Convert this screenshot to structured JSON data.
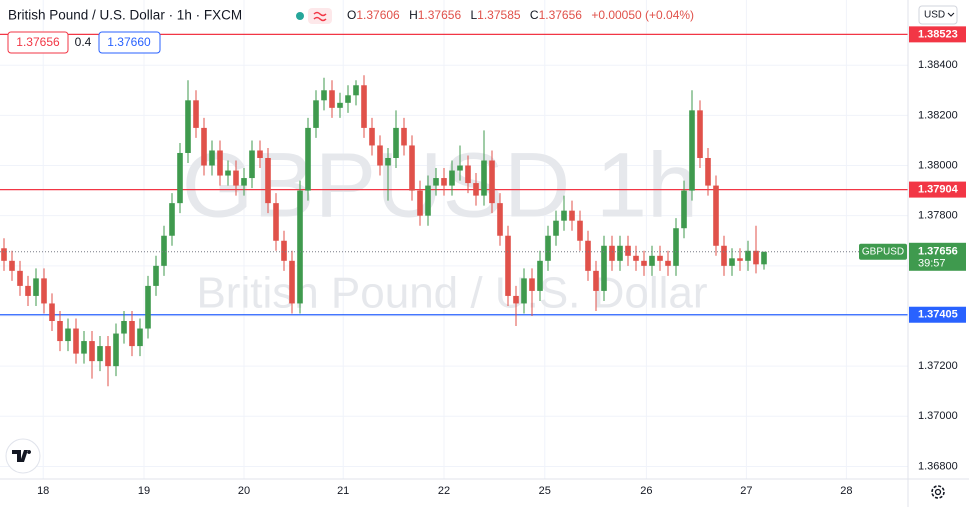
{
  "header": {
    "title": "British Pound / U.S. Dollar · 1h · FXCM",
    "ohlc_labels": [
      "O",
      "H",
      "L",
      "C"
    ],
    "change": "+0.00050 (+0.04%)",
    "spread": "0.4",
    "ask": "1.37660",
    "currency": "USD"
  },
  "chart_data": {
    "type": "candlestick",
    "watermark": "GBPUSD 1h",
    "watermark_subtitle": "British Pound / U.S. Dollar",
    "symbol": "GBPUSD",
    "countdown": "39:57",
    "up_color": "#3f9a4e",
    "down_color": "#e0514a",
    "grid": true,
    "xlim": [
      -0.5,
      113
    ],
    "xticks": [
      {
        "value": 4.9,
        "label": "18"
      },
      {
        "value": 17.5,
        "label": "19"
      },
      {
        "value": 30,
        "label": "20"
      },
      {
        "value": 42.4,
        "label": "21"
      },
      {
        "value": 55,
        "label": "22"
      },
      {
        "value": 67.6,
        "label": "25"
      },
      {
        "value": 80.3,
        "label": "26"
      },
      {
        "value": 92.8,
        "label": "27"
      },
      {
        "value": 105.3,
        "label": "28"
      }
    ],
    "ylim": [
      1.3675,
      1.3866
    ],
    "yticks": [
      {
        "value": 1.368,
        "label": "1.36800"
      },
      {
        "value": 1.37,
        "label": "1.37000"
      },
      {
        "value": 1.372,
        "label": "1.37200"
      },
      {
        "value": 1.374,
        "label": "1.37400"
      },
      {
        "value": 1.376,
        "label": "1.37600"
      },
      {
        "value": 1.378,
        "label": "1.37800"
      },
      {
        "value": 1.38,
        "label": "1.38000"
      },
      {
        "value": 1.382,
        "label": "1.38200"
      },
      {
        "value": 1.384,
        "label": "1.38400"
      }
    ],
    "series": {
      "open": [
        1.3767,
        1.3762,
        1.3758,
        1.3752,
        1.3748,
        1.3755,
        1.3745,
        1.3738,
        1.373,
        1.3735,
        1.3725,
        1.373,
        1.3722,
        1.3728,
        1.372,
        1.3733,
        1.3738,
        1.3728,
        1.3735,
        1.3752,
        1.376,
        1.3772,
        1.3785,
        1.3805,
        1.3826,
        1.3815,
        1.38,
        1.3806,
        1.3796,
        1.3798,
        1.3792,
        1.3795,
        1.3806,
        1.3803,
        1.3785,
        1.377,
        1.3762,
        1.3745,
        1.379,
        1.3815,
        1.3826,
        1.383,
        1.3823,
        1.3825,
        1.3828,
        1.3832,
        1.3815,
        1.3808,
        1.38,
        1.3803,
        1.3815,
        1.3808,
        1.379,
        1.378,
        1.3792,
        1.3795,
        1.3792,
        1.3798,
        1.38,
        1.3793,
        1.3788,
        1.3802,
        1.3785,
        1.3772,
        1.3748,
        1.3745,
        1.3755,
        1.375,
        1.3762,
        1.3772,
        1.3778,
        1.3782,
        1.3778,
        1.377,
        1.3758,
        1.375,
        1.3768,
        1.3762,
        1.3768,
        1.3764,
        1.3762,
        1.376,
        1.3764,
        1.3762,
        1.376,
        1.3775,
        1.379,
        1.3822,
        1.3803,
        1.3792,
        1.3768,
        1.376,
        1.3763,
        1.3762,
        1.3766,
        1.37606
      ],
      "high": [
        1.3771,
        1.3766,
        1.3762,
        1.3756,
        1.3759,
        1.3759,
        1.3749,
        1.3742,
        1.3739,
        1.3739,
        1.3734,
        1.3734,
        1.3732,
        1.3732,
        1.3737,
        1.3742,
        1.3742,
        1.3739,
        1.3756,
        1.3764,
        1.3776,
        1.3789,
        1.3809,
        1.3834,
        1.383,
        1.3819,
        1.381,
        1.381,
        1.3802,
        1.3802,
        1.3799,
        1.381,
        1.381,
        1.3807,
        1.3789,
        1.3774,
        1.3766,
        1.3794,
        1.3819,
        1.383,
        1.3835,
        1.3834,
        1.3829,
        1.3832,
        1.3834,
        1.3836,
        1.3819,
        1.3812,
        1.3807,
        1.3822,
        1.3819,
        1.3812,
        1.3794,
        1.3796,
        1.3799,
        1.3799,
        1.3802,
        1.3808,
        1.3804,
        1.3797,
        1.3814,
        1.3806,
        1.3789,
        1.3776,
        1.3752,
        1.3759,
        1.3759,
        1.3766,
        1.3776,
        1.3782,
        1.3788,
        1.3786,
        1.3782,
        1.3774,
        1.3762,
        1.3772,
        1.3772,
        1.3772,
        1.3772,
        1.3768,
        1.3766,
        1.3768,
        1.3768,
        1.3766,
        1.3779,
        1.3794,
        1.383,
        1.3826,
        1.3807,
        1.3796,
        1.3772,
        1.3767,
        1.3767,
        1.377,
        1.3776,
        1.37656
      ],
      "low": [
        1.3758,
        1.3754,
        1.3748,
        1.3744,
        1.3744,
        1.3741,
        1.3734,
        1.3726,
        1.3726,
        1.3721,
        1.3721,
        1.3715,
        1.3718,
        1.3712,
        1.3716,
        1.3729,
        1.3724,
        1.3724,
        1.3731,
        1.3748,
        1.3756,
        1.3768,
        1.3781,
        1.3801,
        1.3811,
        1.3796,
        1.3796,
        1.3792,
        1.3792,
        1.3788,
        1.3788,
        1.3791,
        1.3799,
        1.3781,
        1.3766,
        1.3758,
        1.3741,
        1.3741,
        1.3786,
        1.3811,
        1.3822,
        1.3819,
        1.3819,
        1.3821,
        1.3824,
        1.3811,
        1.3804,
        1.3796,
        1.3786,
        1.3799,
        1.3804,
        1.3786,
        1.3776,
        1.3776,
        1.3788,
        1.3788,
        1.3788,
        1.3794,
        1.3789,
        1.3784,
        1.3784,
        1.3781,
        1.3768,
        1.3744,
        1.3736,
        1.3741,
        1.374,
        1.3746,
        1.3758,
        1.3768,
        1.3774,
        1.3774,
        1.3766,
        1.3754,
        1.3742,
        1.3746,
        1.3758,
        1.3758,
        1.376,
        1.3758,
        1.3756,
        1.3756,
        1.3758,
        1.3756,
        1.3756,
        1.3771,
        1.3786,
        1.3799,
        1.3788,
        1.3764,
        1.3756,
        1.3756,
        1.3758,
        1.3758,
        1.3757,
        1.37585
      ],
      "close": [
        1.3762,
        1.3758,
        1.3752,
        1.3748,
        1.3755,
        1.3745,
        1.3738,
        1.373,
        1.3735,
        1.3725,
        1.373,
        1.3722,
        1.3728,
        1.372,
        1.3733,
        1.3738,
        1.3728,
        1.3735,
        1.3752,
        1.376,
        1.3772,
        1.3785,
        1.3805,
        1.3826,
        1.3815,
        1.38,
        1.3806,
        1.3796,
        1.3798,
        1.3792,
        1.3795,
        1.3806,
        1.3803,
        1.3785,
        1.377,
        1.3762,
        1.3745,
        1.379,
        1.3815,
        1.3826,
        1.383,
        1.3823,
        1.3825,
        1.3828,
        1.3832,
        1.3815,
        1.3808,
        1.38,
        1.3803,
        1.3815,
        1.3808,
        1.379,
        1.378,
        1.3792,
        1.3795,
        1.3792,
        1.3798,
        1.38,
        1.3793,
        1.3788,
        1.3802,
        1.3785,
        1.3772,
        1.3748,
        1.3745,
        1.3755,
        1.375,
        1.3762,
        1.3772,
        1.3778,
        1.3782,
        1.3778,
        1.377,
        1.3758,
        1.375,
        1.3768,
        1.3762,
        1.3768,
        1.3764,
        1.3762,
        1.376,
        1.3764,
        1.3762,
        1.376,
        1.3775,
        1.379,
        1.3822,
        1.3803,
        1.3792,
        1.3768,
        1.376,
        1.3763,
        1.3762,
        1.3766,
        1.37606,
        1.37656
      ]
    },
    "levels": [
      {
        "value": 1.38523,
        "color": "#f23645"
      },
      {
        "value": 1.37904,
        "color": "#f23645"
      },
      {
        "value": 1.37405,
        "color": "#2962ff"
      }
    ]
  }
}
